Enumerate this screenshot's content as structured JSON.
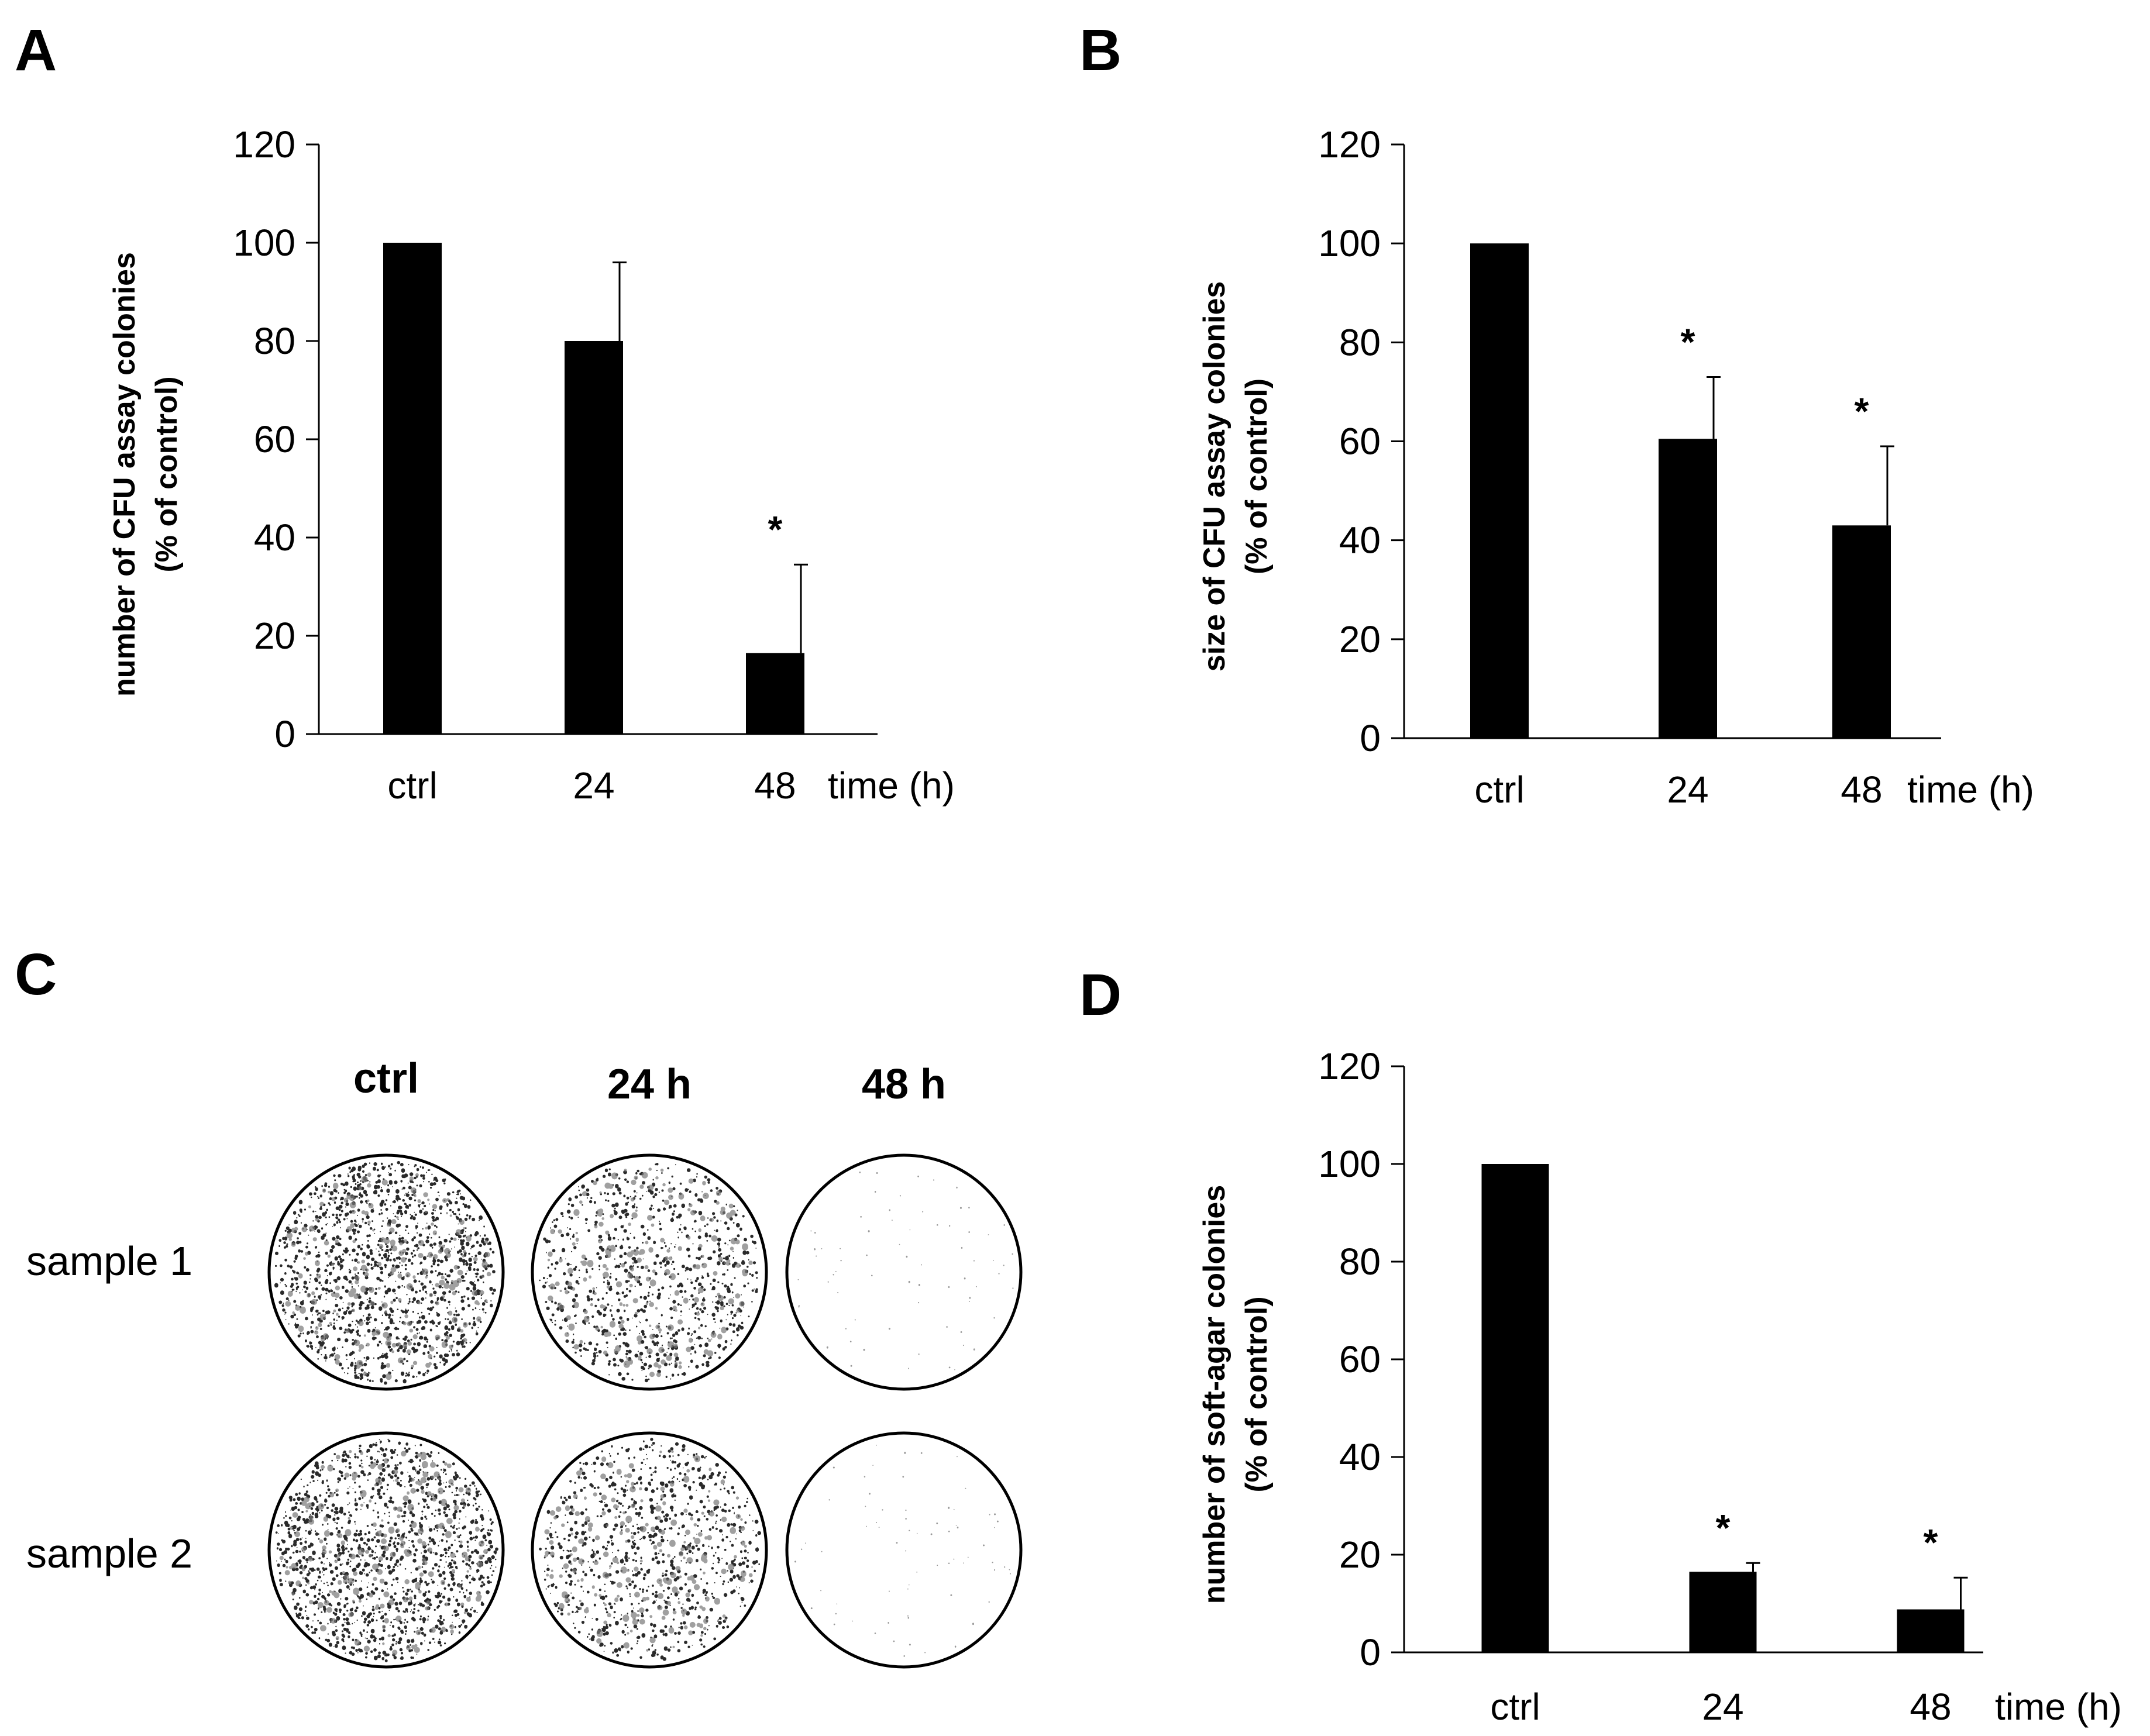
{
  "panels": {
    "a": "A",
    "b": "B",
    "c": "C",
    "d": "D"
  },
  "photos": {
    "column_headers": [
      "ctrl",
      "24 h",
      "48 h"
    ],
    "row_headers": [
      "sample 1",
      "sample 2"
    ],
    "density": [
      [
        1.0,
        0.6,
        0.05
      ],
      [
        1.0,
        0.6,
        0.05
      ]
    ]
  },
  "colors": {
    "bar": "#000000",
    "axis": "#000000",
    "background": "#ffffff"
  },
  "chart_data": [
    {
      "id": "A",
      "type": "bar",
      "categories": [
        "ctrl",
        "24",
        "48"
      ],
      "values": [
        100,
        80,
        16.5
      ],
      "errors": [
        0,
        16,
        18
      ],
      "significance": [
        "",
        "",
        "*"
      ],
      "xlabel": "time (h)",
      "ylabel": [
        "number of CFU assay colonies",
        "(% of control)"
      ],
      "ylim": [
        0,
        120
      ],
      "yticks": [
        "0",
        "20",
        "40",
        "60",
        "80",
        "100",
        "120"
      ]
    },
    {
      "id": "B",
      "type": "bar",
      "categories": [
        "ctrl",
        "24",
        "48"
      ],
      "values": [
        100,
        60.5,
        43
      ],
      "errors": [
        0,
        12.5,
        16
      ],
      "significance": [
        "",
        "*",
        "*"
      ],
      "xlabel": "time (h)",
      "ylabel": [
        "size of CFU assay colonies",
        "(% of control)"
      ],
      "ylim": [
        0,
        120
      ],
      "yticks": [
        "0",
        "20",
        "40",
        "60",
        "80",
        "100",
        "120"
      ]
    },
    {
      "id": "D",
      "type": "bar",
      "categories": [
        "ctrl",
        "24",
        "48"
      ],
      "values": [
        100,
        16.5,
        8.8
      ],
      "errors": [
        0,
        1.8,
        6.5
      ],
      "significance": [
        "",
        "*",
        "*"
      ],
      "xlabel": "time (h)",
      "ylabel": [
        "number of soft-agar colonies",
        "(% of control)"
      ],
      "ylim": [
        0,
        120
      ],
      "yticks": [
        "0",
        "20",
        "40",
        "60",
        "80",
        "100",
        "120"
      ]
    }
  ]
}
